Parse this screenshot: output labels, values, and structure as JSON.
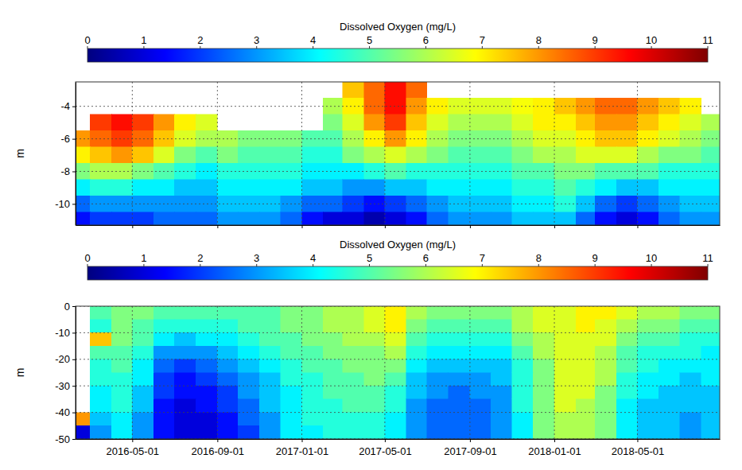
{
  "chart_data": [
    {
      "type": "heatmap",
      "colorbar": {
        "label": "Dissolved Oxygen (mg/L)",
        "range": [
          0,
          11
        ],
        "ticks": [
          0,
          1,
          2,
          3,
          4,
          5,
          6,
          7,
          8,
          9,
          10,
          11
        ]
      },
      "y_label": "m",
      "xlim": [
        "2016-02-09",
        "2018-08-28"
      ],
      "ylim": [
        -11.3,
        -2.5
      ],
      "xticks": [
        "2016-05-01",
        "2016-09-01",
        "2017-01-01",
        "2017-05-01",
        "2017-09-01",
        "2018-01-01",
        "2018-05-01"
      ],
      "yticks": [
        -10,
        -8,
        -6,
        -4
      ],
      "grid": true,
      "tick_labels": "y",
      "x_edges": [
        "2016-02-01",
        "2016-03-01",
        "2016-04-01",
        "2016-05-01",
        "2016-06-01",
        "2016-07-01",
        "2016-08-01",
        "2016-09-01",
        "2016-10-01",
        "2016-11-01",
        "2016-12-01",
        "2017-01-01",
        "2017-02-01",
        "2017-03-01",
        "2017-04-01",
        "2017-05-01",
        "2017-06-01",
        "2017-07-01",
        "2017-08-01",
        "2017-09-01",
        "2017-10-01",
        "2017-11-01",
        "2017-12-01",
        "2018-01-01",
        "2018-02-01",
        "2018-03-01",
        "2018-04-01",
        "2018-05-01",
        "2018-06-01",
        "2018-07-01",
        "2018-08-01",
        "2018-09-01"
      ],
      "y_edges": [
        -2.5,
        -3.5,
        -4.5,
        -5.5,
        -6.5,
        -7.5,
        -8.5,
        -9.5,
        -10.5,
        -11.5
      ],
      "z": [
        [
          null,
          null,
          null,
          null,
          null,
          null,
          null,
          null,
          null,
          null,
          null,
          null,
          null,
          7.5,
          8.5,
          9.5,
          8.5,
          null,
          null,
          null,
          null,
          null,
          null,
          null,
          null,
          null,
          null,
          null,
          null,
          null,
          null
        ],
        [
          null,
          null,
          null,
          null,
          null,
          null,
          null,
          null,
          null,
          null,
          null,
          null,
          6,
          7,
          8.5,
          9.5,
          8,
          7,
          6.5,
          6.5,
          6.5,
          6.8,
          7,
          7.5,
          8,
          8.5,
          8.5,
          8,
          7.5,
          7,
          null
        ],
        [
          null,
          9,
          9.5,
          9,
          8,
          7,
          6.5,
          null,
          null,
          null,
          null,
          null,
          5.5,
          6.5,
          8,
          9,
          7.5,
          6.5,
          6,
          6,
          6,
          6.5,
          7,
          7,
          7.5,
          8,
          8,
          7.5,
          7,
          6.5,
          6
        ],
        [
          8,
          8.5,
          9,
          8.5,
          7.5,
          6.5,
          6,
          6,
          5.5,
          5.5,
          5.5,
          5,
          5,
          6,
          7,
          8,
          7,
          6,
          5.5,
          5.5,
          5.5,
          6,
          6.5,
          6.5,
          7,
          7.5,
          7.5,
          7,
          6.5,
          6,
          5.5
        ],
        [
          7,
          7.5,
          8,
          7.5,
          6.5,
          5.5,
          5,
          5.5,
          5,
          5,
          5,
          4.5,
          4.5,
          5.5,
          6,
          6.5,
          6,
          5.5,
          5,
          5,
          5,
          5.5,
          6,
          6,
          6.5,
          6.5,
          6.5,
          6,
          5.5,
          5.5,
          5
        ],
        [
          5.5,
          6,
          6,
          5.5,
          5,
          4.5,
          4,
          4.5,
          4.5,
          4.5,
          4.5,
          4,
          4,
          4,
          4.5,
          5,
          4.5,
          4.5,
          4.5,
          4.5,
          4.5,
          5,
          5,
          5.5,
          5.5,
          5,
          5,
          5,
          4.5,
          4.5,
          4.5
        ],
        [
          4,
          4.5,
          4.5,
          4,
          4,
          3.5,
          3.5,
          4,
          4,
          4,
          4,
          3.5,
          3.5,
          3,
          3,
          3.5,
          3.5,
          4,
          4,
          4,
          4,
          4.5,
          4.5,
          5,
          4.5,
          4,
          3.5,
          3.5,
          4,
          4,
          4
        ],
        [
          2.5,
          3,
          3,
          3,
          3,
          3,
          3,
          3.5,
          3.5,
          3.5,
          3,
          2.5,
          2.5,
          2,
          1.5,
          2,
          2.5,
          3,
          3.5,
          3.5,
          3.5,
          4,
          4,
          4.5,
          3.5,
          2.5,
          2,
          2.5,
          3,
          3.5,
          3.5
        ],
        [
          1.5,
          2,
          2,
          2,
          2.5,
          2.5,
          2.5,
          3,
          3,
          3,
          2.5,
          1.5,
          1,
          1,
          0.5,
          1,
          1.5,
          2.5,
          3,
          3,
          3,
          3.5,
          3.5,
          3.5,
          2.5,
          1.5,
          1,
          1.5,
          2.5,
          3,
          3
        ]
      ]
    },
    {
      "type": "heatmap",
      "colorbar": {
        "label": "Dissolved Oxygen (mg/L)",
        "range": [
          0,
          11
        ],
        "ticks": [
          0,
          1,
          2,
          3,
          4,
          5,
          6,
          7,
          8,
          9,
          10,
          11
        ]
      },
      "y_label": "m",
      "xlim": [
        "2016-02-09",
        "2018-08-28"
      ],
      "ylim": [
        -50,
        0
      ],
      "xticks": [
        "2016-05-01",
        "2016-09-01",
        "2017-01-01",
        "2017-05-01",
        "2017-09-01",
        "2018-01-01",
        "2018-05-01"
      ],
      "yticks": [
        -50,
        -40,
        -30,
        -20,
        -10,
        0
      ],
      "grid": true,
      "tick_labels": true,
      "x_edges": [
        "2016-02-01",
        "2016-03-01",
        "2016-04-01",
        "2016-05-01",
        "2016-06-01",
        "2016-07-01",
        "2016-08-01",
        "2016-09-01",
        "2016-10-01",
        "2016-11-01",
        "2016-12-01",
        "2017-01-01",
        "2017-02-01",
        "2017-03-01",
        "2017-04-01",
        "2017-05-01",
        "2017-06-01",
        "2017-07-01",
        "2017-08-01",
        "2017-09-01",
        "2017-10-01",
        "2017-11-01",
        "2017-12-01",
        "2018-01-01",
        "2018-02-01",
        "2018-03-01",
        "2018-04-01",
        "2018-05-01",
        "2018-06-01",
        "2018-07-01",
        "2018-08-01",
        "2018-09-01"
      ],
      "y_edges": [
        0,
        -5,
        -10,
        -15,
        -20,
        -25,
        -30,
        -35,
        -40,
        -45,
        -50
      ],
      "z": [
        [
          null,
          5,
          5.5,
          5.5,
          5,
          5,
          5,
          5,
          5,
          5,
          5.5,
          5.5,
          6,
          6,
          6.5,
          7,
          6,
          5.5,
          5.5,
          5.5,
          5.5,
          6,
          6.5,
          6.5,
          7,
          7,
          6.5,
          6,
          6,
          5.5,
          5.5
        ],
        [
          null,
          4.5,
          5.5,
          5,
          4.5,
          4.5,
          4.5,
          4.5,
          5,
          5,
          5.5,
          5.5,
          6,
          6,
          6.5,
          7,
          5.5,
          5,
          5,
          5,
          5,
          6,
          6.5,
          6.5,
          7,
          6.5,
          6,
          5.5,
          5.5,
          5,
          5
        ],
        [
          null,
          7.5,
          5.5,
          5,
          4,
          3.5,
          4,
          4,
          4.5,
          5,
          5,
          5.5,
          5.5,
          6,
          6,
          6.5,
          5,
          4.5,
          4.5,
          4.5,
          4.5,
          5.5,
          6,
          6.5,
          6.5,
          6.5,
          5.5,
          5,
          5,
          4.5,
          4.5
        ],
        [
          null,
          5,
          5,
          4.5,
          3,
          3,
          3,
          3.5,
          4,
          4.5,
          5,
          5,
          5.5,
          5.5,
          5.5,
          6,
          4.5,
          4,
          4,
          4,
          4,
          5,
          6,
          6.5,
          6.5,
          6,
          5,
          4.5,
          4.5,
          4.5,
          4
        ],
        [
          null,
          4.5,
          5,
          4,
          2.5,
          2,
          2.5,
          3,
          3.5,
          4,
          4.5,
          5,
          5,
          5.5,
          5.5,
          5.5,
          4,
          3.5,
          3.5,
          3.5,
          3.5,
          4.5,
          5.5,
          6.5,
          6.5,
          6,
          5,
          4.5,
          4,
          4,
          4
        ],
        [
          null,
          4.5,
          4.5,
          4,
          2,
          1.5,
          2,
          2.5,
          3,
          3.5,
          4.5,
          4.5,
          5,
          5,
          5.5,
          5,
          3.5,
          3,
          3,
          3,
          3.5,
          4.5,
          5.5,
          6.5,
          6.5,
          6,
          4.5,
          4,
          4,
          3.5,
          4
        ],
        [
          null,
          4,
          4.5,
          3.5,
          2,
          1.5,
          1.5,
          2,
          3,
          3.5,
          4,
          4.5,
          5,
          5,
          5,
          4.5,
          3.5,
          3,
          2.5,
          3,
          3,
          4.5,
          5.5,
          6.5,
          6.5,
          5.5,
          4.5,
          4,
          3.5,
          3.5,
          3.5
        ],
        [
          null,
          4,
          4.5,
          3.5,
          1.5,
          1,
          1.5,
          2,
          2.5,
          3.5,
          4,
          4.5,
          4.5,
          5,
          5,
          4.5,
          3,
          2.5,
          2.5,
          2.5,
          3,
          4.5,
          5.5,
          6.5,
          6,
          5.5,
          4,
          3.5,
          3.5,
          3.5,
          3.5
        ],
        [
          8,
          3.5,
          4,
          3,
          1.5,
          1,
          1,
          1.5,
          2.5,
          3,
          4,
          4.5,
          4.5,
          4.5,
          4.5,
          4,
          3,
          2.5,
          2.5,
          2.5,
          3,
          4,
          5.5,
          6,
          6,
          5.5,
          4,
          3.5,
          3.5,
          3,
          3.5
        ],
        [
          1,
          3,
          4,
          3,
          1.5,
          1,
          1,
          1.5,
          2,
          3,
          4,
          4,
          4.5,
          4.5,
          4.5,
          4,
          3,
          2.5,
          2.5,
          2.5,
          3,
          4,
          5.5,
          6,
          6,
          5.5,
          4,
          3.5,
          3.5,
          3,
          3.5
        ]
      ]
    }
  ]
}
